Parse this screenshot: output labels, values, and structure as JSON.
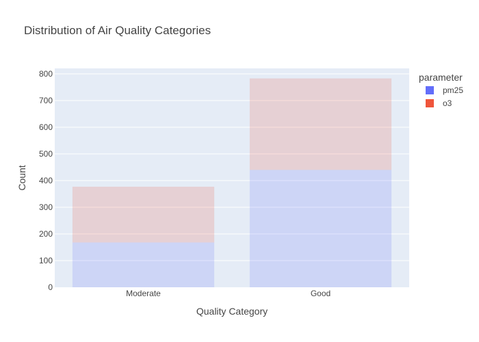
{
  "chart_data": {
    "type": "bar",
    "barmode": "stack",
    "title": "Distribution of Air Quality Categories",
    "xlabel": "Quality Category",
    "ylabel": "Count",
    "categories": [
      "Moderate",
      "Good"
    ],
    "series": [
      {
        "name": "pm25",
        "values": [
          168,
          440
        ],
        "color": "#636efa"
      },
      {
        "name": "o3",
        "values": [
          209,
          343
        ],
        "color": "#ef553b"
      }
    ],
    "ylim": [
      0,
      820
    ],
    "yticks": [
      0,
      100,
      200,
      300,
      400,
      500,
      600,
      700,
      800
    ],
    "grid": true,
    "legend": {
      "title": "parameter",
      "position": "top-right"
    },
    "colors": {
      "plot_bg": "#e5ecf6",
      "grid": "#ffffff"
    }
  }
}
